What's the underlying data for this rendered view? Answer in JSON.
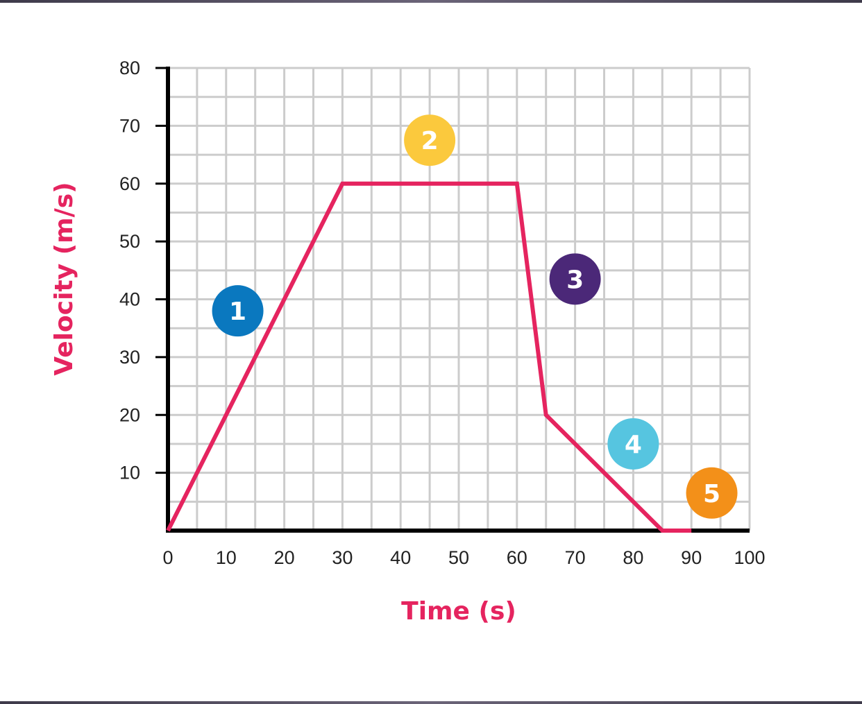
{
  "chart_data": {
    "type": "line",
    "xlabel": "Time (s)",
    "ylabel": "Velocity (m/s)",
    "xlim": [
      0,
      100
    ],
    "ylim": [
      0,
      80
    ],
    "x_ticks": [
      0,
      10,
      20,
      30,
      40,
      50,
      60,
      70,
      80,
      90,
      100
    ],
    "y_ticks": [
      10,
      20,
      30,
      40,
      50,
      60,
      70,
      80
    ],
    "grid": true,
    "grid_step": 5,
    "series": [
      {
        "color": "#e5245f",
        "x": [
          0,
          30,
          60,
          65,
          85,
          90
        ],
        "y": [
          0,
          60,
          60,
          20,
          0,
          0
        ]
      }
    ],
    "annotations": [
      {
        "label": "1",
        "x": 12,
        "y": 38,
        "color": "#0a78bf"
      },
      {
        "label": "2",
        "x": 45,
        "y": 67.5,
        "color": "#fbc93d"
      },
      {
        "label": "3",
        "x": 70,
        "y": 43.5,
        "color": "#4b2878"
      },
      {
        "label": "4",
        "x": 80,
        "y": 15,
        "color": "#56c5e0"
      },
      {
        "label": "5",
        "x": 93.5,
        "y": 6.5,
        "color": "#f39019"
      }
    ],
    "colors": {
      "axis": "#000000",
      "grid": "#cccccc",
      "axis_title": "#e5245f"
    }
  }
}
